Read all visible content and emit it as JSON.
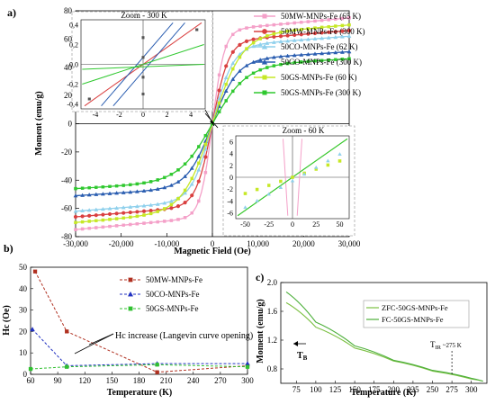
{
  "chart_data": [
    {
      "panel": "a)",
      "type": "line",
      "xlabel": "Magnetic Field (Oe)",
      "ylabel": "Moment (emu/g)",
      "xlim": [
        -30000,
        30000
      ],
      "ylim": [
        -80,
        80
      ],
      "xticks": [
        "-30,000",
        "-20,000",
        "-10,000",
        "0",
        "10,000",
        "20,000",
        "30,000"
      ],
      "yticks": [
        "80",
        "60",
        "40",
        "20",
        "0",
        "-20",
        "-40",
        "-60",
        "-80"
      ],
      "legend": "right",
      "series": [
        {
          "name": "50MW-MNPs-Fe (65 K)",
          "Ms": 75,
          "color": "#f4a0c8",
          "marker": "square"
        },
        {
          "name": "50MW-MNPs-Fe (300 K)",
          "Ms": 66,
          "color": "#d94040",
          "marker": "circle"
        },
        {
          "name": "50CO-MNPs-Fe (62 K)",
          "Ms": 62,
          "color": "#8fd0ec",
          "marker": "triangle"
        },
        {
          "name": "50CO-MNPs-Fe (300 K)",
          "Ms": 51,
          "color": "#2a5db0",
          "marker": "triangle"
        },
        {
          "name": "50GS-MNPs-Fe (60 K)",
          "Ms": 70,
          "color": "#c6e826",
          "marker": "square"
        },
        {
          "name": "50GS-MNPs-Fe (300 K)",
          "Ms": 46,
          "color": "#2fc82f",
          "marker": "square"
        }
      ],
      "insets": [
        {
          "title": "Zoom - 300 K",
          "xticks": [
            "-4",
            "-2",
            "0",
            "2",
            "4"
          ],
          "yticks": [
            "0,4",
            "0,2",
            "0,0",
            "-0,2",
            "-0,4"
          ]
        },
        {
          "title": "Zoom - 60 K",
          "xticks": [
            "-50",
            "-25",
            "0",
            "25",
            "50"
          ],
          "yticks": [
            "6",
            "4",
            "2",
            "0",
            "-2",
            "-4",
            "-6"
          ]
        }
      ]
    },
    {
      "panel": "b)",
      "type": "line",
      "xlabel": "Temperature (K)",
      "ylabel": "Hc (Oe)",
      "xlim": [
        60,
        300
      ],
      "ylim": [
        0,
        50
      ],
      "xticks": [
        "60",
        "90",
        "120",
        "150",
        "180",
        "210",
        "240",
        "270",
        "300"
      ],
      "yticks": [
        "0",
        "10",
        "20",
        "30",
        "40",
        "50"
      ],
      "annotation": "Hc increase (Langevin curve opening)",
      "series": [
        {
          "name": "50MW-MNPs-Fe",
          "color": "#b03020",
          "x": [
            65,
            100,
            200,
            300
          ],
          "values": [
            48,
            20,
            1,
            4
          ]
        },
        {
          "name": "50CO-MNPs-Fe",
          "color": "#2030c0",
          "x": [
            62,
            100,
            200,
            300
          ],
          "values": [
            21,
            4,
            5,
            5
          ]
        },
        {
          "name": "50GS-MNPs-Fe",
          "color": "#30c030",
          "x": [
            60,
            100,
            200,
            300
          ],
          "values": [
            2.5,
            3.5,
            4.5,
            3.5
          ]
        }
      ]
    },
    {
      "panel": "c)",
      "type": "line",
      "xlabel": "Temperature (K)",
      "ylabel": "Moment (emu/g)",
      "xlim": [
        55,
        320
      ],
      "ylim": [
        0.6,
        2.0
      ],
      "xticks": [
        "75",
        "100",
        "125",
        "150",
        "175",
        "200",
        "225",
        "250",
        "275",
        "300"
      ],
      "yticks": [
        "2.0",
        "1.6",
        "1.2",
        "0.8"
      ],
      "annotations": [
        "T_B",
        "T_IR ~ 275 K"
      ],
      "series": [
        {
          "name": "ZFC-50GS-MNPs-Fe",
          "color": "#7cc043",
          "x": [
            62,
            100,
            150,
            200,
            250,
            300,
            315
          ],
          "values": [
            1.72,
            1.38,
            1.09,
            0.91,
            0.77,
            0.66,
            0.63
          ]
        },
        {
          "name": "FC-50GS-MNPs-Fe",
          "color": "#4caf3a",
          "x": [
            62,
            100,
            150,
            200,
            250,
            300,
            315
          ],
          "values": [
            1.87,
            1.45,
            1.12,
            0.92,
            0.78,
            0.67,
            0.63
          ]
        }
      ]
    }
  ],
  "labels": {
    "tb_sym": "T",
    "tb_sub": "B",
    "tir_sym": "T",
    "tir_sub": "IR",
    "tir_val": "~275 K"
  }
}
